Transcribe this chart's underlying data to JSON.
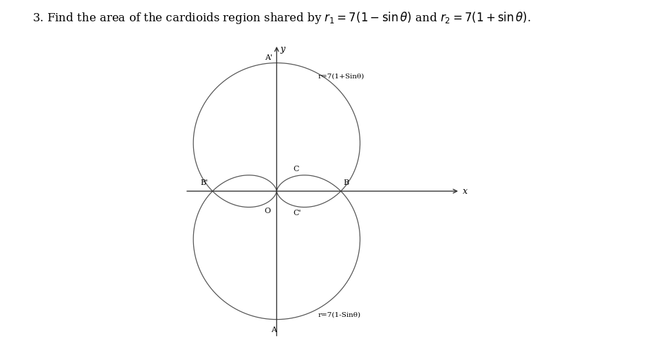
{
  "title": "3. Find the area of the cardioids region shared by $r_1 = 7(1 - \\sin\\theta)$ and $r_2 = 7(1 + \\sin\\theta)$.",
  "title_fontsize": 12,
  "background_color": "#ffffff",
  "curve_color": "#555555",
  "axis_color": "#333333",
  "label_color": "#000000",
  "r": 7,
  "label_A_prime": "A'",
  "label_A": "A",
  "label_B": "B",
  "label_B_prime": "B'",
  "label_C": "C",
  "label_C_prime": "C'",
  "label_O": "O",
  "label_x": "x",
  "label_y": "y",
  "label_r1": "r=7(1-Sinθ)",
  "label_r2": "r=7(1+Sinθ)",
  "figsize": [
    9.38,
    5.15
  ],
  "dpi": 100,
  "xlim": [
    -12,
    22
  ],
  "ylim": [
    -17,
    17
  ]
}
